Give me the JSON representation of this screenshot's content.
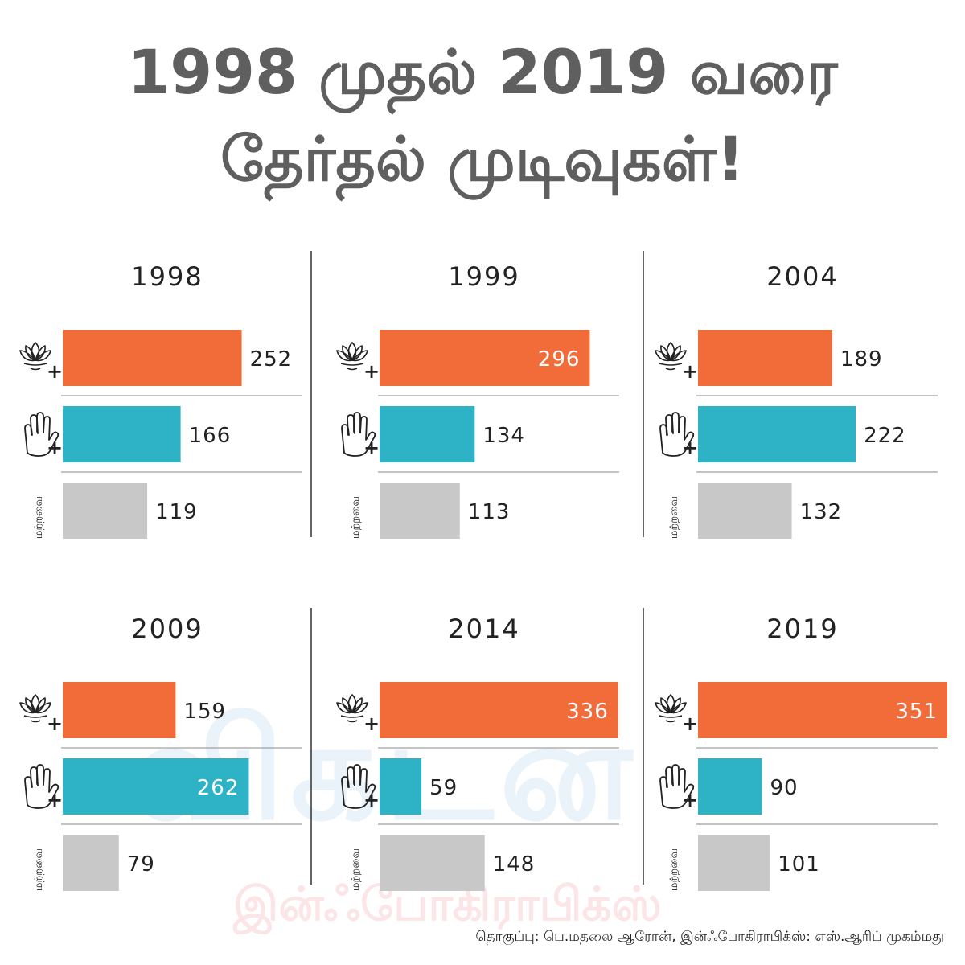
{
  "title": {
    "line1": "1998 முதல் 2019 வரை",
    "line2": "தேர்தல் முடிவுகள்!"
  },
  "footer": "தொகுப்பு: பெ.மதலை ஆரோன், இன்ஃபோகிராபிக்ஸ்: எஸ்.ஆரிப் முகம்மது",
  "watermark": {
    "main": "விகடன்",
    "sub": "இன்ஃபோகிராபிக்ஸ்"
  },
  "colors": {
    "bjp": "#f26c3a",
    "congress": "#2eb2c5",
    "others": "#c8c8c8",
    "title": "#5f5f5f"
  },
  "icons": {
    "bjp": "lotus-icon",
    "congress": "hand-icon"
  },
  "others_label": "மற்றவை",
  "plus_sign": "+",
  "chart_data": [
    {
      "type": "bar",
      "title": "1998",
      "categories": [
        "bjp",
        "congress",
        "others"
      ],
      "values": [
        252,
        166,
        119
      ]
    },
    {
      "type": "bar",
      "title": "1999",
      "categories": [
        "bjp",
        "congress",
        "others"
      ],
      "values": [
        296,
        134,
        113
      ]
    },
    {
      "type": "bar",
      "title": "2004",
      "categories": [
        "bjp",
        "congress",
        "others"
      ],
      "values": [
        189,
        222,
        132
      ]
    },
    {
      "type": "bar",
      "title": "2009",
      "categories": [
        "bjp",
        "congress",
        "others"
      ],
      "values": [
        159,
        262,
        79
      ]
    },
    {
      "type": "bar",
      "title": "2014",
      "categories": [
        "bjp",
        "congress",
        "others"
      ],
      "values": [
        336,
        59,
        148
      ]
    },
    {
      "type": "bar",
      "title": "2019",
      "categories": [
        "bjp",
        "congress",
        "others"
      ],
      "values": [
        351,
        90,
        101
      ]
    }
  ]
}
